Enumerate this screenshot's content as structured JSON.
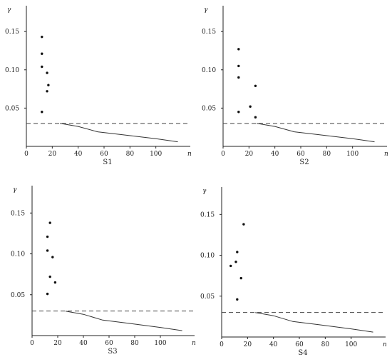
{
  "chart_data": [
    {
      "type": "scatter",
      "title": "S1",
      "ylabel": "γ",
      "xlabel": "n",
      "xlim": [
        0,
        120
      ],
      "ylim": [
        0,
        0.18
      ],
      "xticks": [
        "0",
        "20",
        "40",
        "60",
        "80",
        "100"
      ],
      "yticks": [
        "0.05",
        "0.10",
        "0.15"
      ],
      "points": [
        {
          "x": 12,
          "y": 0.143
        },
        {
          "x": 12,
          "y": 0.121
        },
        {
          "x": 12,
          "y": 0.104
        },
        {
          "x": 16,
          "y": 0.096
        },
        {
          "x": 17,
          "y": 0.08
        },
        {
          "x": 16,
          "y": 0.072
        },
        {
          "x": 12,
          "y": 0.045
        }
      ],
      "threshold": 0.03,
      "curve": [
        {
          "x": 26,
          "y": 0.03
        },
        {
          "x": 40,
          "y": 0.026
        },
        {
          "x": 55,
          "y": 0.019
        },
        {
          "x": 75,
          "y": 0.015
        },
        {
          "x": 100,
          "y": 0.01
        },
        {
          "x": 117,
          "y": 0.006
        }
      ]
    },
    {
      "type": "scatter",
      "title": "S2",
      "ylabel": "γ",
      "xlabel": "n",
      "xlim": [
        0,
        120
      ],
      "ylim": [
        0,
        0.18
      ],
      "xticks": [
        "0",
        "20",
        "40",
        "60",
        "80",
        "100"
      ],
      "yticks": [
        "0.05",
        "0.10",
        "0.15"
      ],
      "points": [
        {
          "x": 12,
          "y": 0.127
        },
        {
          "x": 12,
          "y": 0.105
        },
        {
          "x": 12,
          "y": 0.09
        },
        {
          "x": 25,
          "y": 0.079
        },
        {
          "x": 21,
          "y": 0.052
        },
        {
          "x": 25,
          "y": 0.038
        },
        {
          "x": 12,
          "y": 0.045
        }
      ],
      "threshold": 0.03,
      "curve": [
        {
          "x": 26,
          "y": 0.03
        },
        {
          "x": 40,
          "y": 0.026
        },
        {
          "x": 55,
          "y": 0.019
        },
        {
          "x": 75,
          "y": 0.015
        },
        {
          "x": 100,
          "y": 0.01
        },
        {
          "x": 117,
          "y": 0.006
        }
      ]
    },
    {
      "type": "scatter",
      "title": "S3",
      "ylabel": "γ",
      "xlabel": "n",
      "xlim": [
        0,
        120
      ],
      "ylim": [
        0,
        0.18
      ],
      "xticks": [
        "0",
        "20",
        "40",
        "60",
        "80",
        "100"
      ],
      "yticks": [
        "0.05",
        "0.10",
        "0.15"
      ],
      "points": [
        {
          "x": 14,
          "y": 0.138
        },
        {
          "x": 12,
          "y": 0.121
        },
        {
          "x": 12,
          "y": 0.104
        },
        {
          "x": 16,
          "y": 0.096
        },
        {
          "x": 14,
          "y": 0.072
        },
        {
          "x": 18,
          "y": 0.065
        },
        {
          "x": 12,
          "y": 0.051
        }
      ],
      "threshold": 0.03,
      "curve": [
        {
          "x": 26,
          "y": 0.03
        },
        {
          "x": 40,
          "y": 0.026
        },
        {
          "x": 55,
          "y": 0.019
        },
        {
          "x": 75,
          "y": 0.015
        },
        {
          "x": 100,
          "y": 0.01
        },
        {
          "x": 117,
          "y": 0.006
        }
      ]
    },
    {
      "type": "scatter",
      "title": "S4",
      "ylabel": "γ",
      "xlabel": "n",
      "xlim": [
        0,
        120
      ],
      "ylim": [
        0,
        0.18
      ],
      "xticks": [
        "0",
        "20",
        "40",
        "60",
        "80",
        "100"
      ],
      "yticks": [
        "0.05",
        "0.10",
        "0.15"
      ],
      "points": [
        {
          "x": 17,
          "y": 0.138
        },
        {
          "x": 12,
          "y": 0.104
        },
        {
          "x": 11,
          "y": 0.092
        },
        {
          "x": 7,
          "y": 0.087
        },
        {
          "x": 15,
          "y": 0.072
        },
        {
          "x": 12,
          "y": 0.046
        }
      ],
      "threshold": 0.03,
      "curve": [
        {
          "x": 26,
          "y": 0.03
        },
        {
          "x": 40,
          "y": 0.026
        },
        {
          "x": 55,
          "y": 0.019
        },
        {
          "x": 75,
          "y": 0.015
        },
        {
          "x": 100,
          "y": 0.01
        },
        {
          "x": 117,
          "y": 0.006
        }
      ]
    }
  ]
}
